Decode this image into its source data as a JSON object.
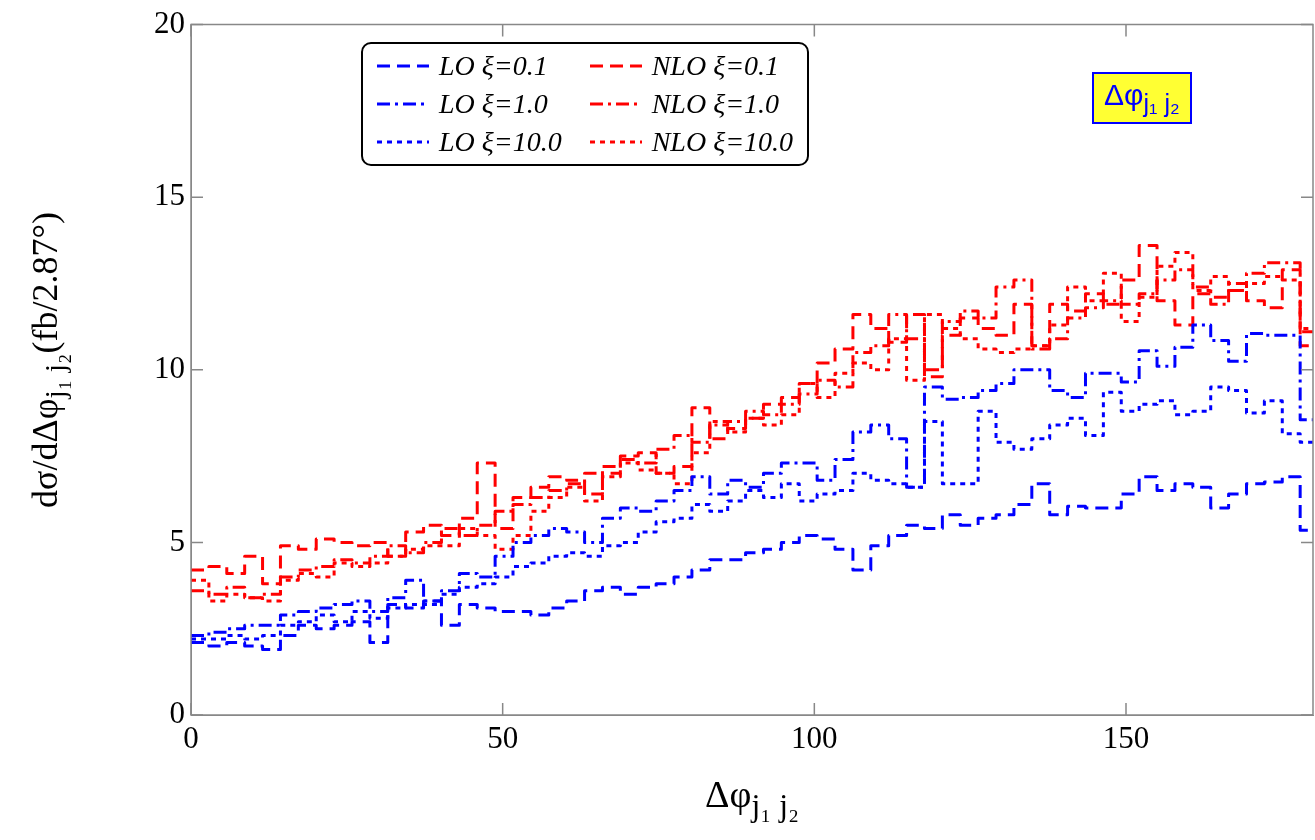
{
  "chart_data": {
    "type": "step",
    "xlabel": "Δφ$_{j₁ j₂}$",
    "ylabel": "dσ/dΔφ$_{j₁ j₂}$(fb/2.87°)",
    "annotations": [
      "Δφ$_{j₁ j₂}$"
    ],
    "x": [
      0,
      2.87,
      5.74,
      8.61,
      11.48,
      14.35,
      17.22,
      20.09,
      22.96,
      25.83,
      28.7,
      31.57,
      34.44,
      37.31,
      40.18,
      43.05,
      45.92,
      48.79,
      51.66,
      54.53,
      57.4,
      60.27,
      63.14,
      66.01,
      68.88,
      71.75,
      74.62,
      77.49,
      80.36,
      83.23,
      86.1,
      88.97,
      91.84,
      94.71,
      97.58,
      100.45,
      103.32,
      106.19,
      109.06,
      111.93,
      114.8,
      117.67,
      120.54,
      123.41,
      126.28,
      129.15,
      132.02,
      134.89,
      137.76,
      140.63,
      143.5,
      146.37,
      149.24,
      152.11,
      154.98,
      157.85,
      160.72,
      163.59,
      166.46,
      169.33,
      172.2,
      175.07,
      177.94,
      180
    ],
    "xlim": [
      0,
      180
    ],
    "xticks": [
      0,
      50,
      100,
      150
    ],
    "ylim": [
      0,
      20
    ],
    "yticks": [
      0,
      5,
      10,
      15,
      20
    ],
    "grid": false,
    "legend": "top",
    "series": [
      {
        "name": "LO ξ=0.1",
        "color": "#0000ff",
        "line_style": "dashed",
        "values": [
          2.1,
          2.0,
          2.1,
          2.0,
          1.9,
          2.3,
          2.6,
          2.5,
          2.6,
          2.7,
          2.1,
          3.2,
          3.1,
          3.3,
          2.6,
          3.2,
          3.1,
          3.0,
          3.0,
          2.9,
          3.1,
          3.3,
          3.6,
          3.7,
          3.5,
          3.7,
          3.8,
          4.0,
          4.2,
          4.5,
          4.5,
          4.7,
          4.8,
          5.0,
          5.2,
          5.1,
          4.8,
          4.2,
          4.9,
          5.2,
          5.5,
          5.4,
          5.8,
          5.5,
          5.7,
          5.8,
          6.1,
          6.7,
          5.8,
          6.05,
          6.0,
          6.0,
          6.4,
          6.9,
          6.5,
          6.7,
          6.6,
          6.0,
          6.4,
          6.7,
          6.75,
          6.9,
          5.35,
          5.35
        ]
      },
      {
        "name": "LO ξ=1.0",
        "color": "#0000ff",
        "line_style": "dashdot",
        "values": [
          2.3,
          2.4,
          2.5,
          2.6,
          2.6,
          2.9,
          3.0,
          3.1,
          3.2,
          3.3,
          3.0,
          3.4,
          3.9,
          3.3,
          3.6,
          4.1,
          4.0,
          4.6,
          5.0,
          5.2,
          5.4,
          5.3,
          5.0,
          5.7,
          6.0,
          5.9,
          6.2,
          6.5,
          6.9,
          6.4,
          6.8,
          6.6,
          7.0,
          7.3,
          7.3,
          6.8,
          7.4,
          8.2,
          8.4,
          8.0,
          6.6,
          9.5,
          9.15,
          9.2,
          9.4,
          9.6,
          10.0,
          10.0,
          9.4,
          9.2,
          9.9,
          9.9,
          9.65,
          10.55,
          10.1,
          10.65,
          11.3,
          10.85,
          10.25,
          11.05,
          11.0,
          11.0,
          8.55,
          8.55
        ]
      },
      {
        "name": "LO ξ=10.0",
        "color": "#0000ff",
        "line_style": "dotted",
        "values": [
          2.2,
          2.2,
          2.3,
          2.2,
          2.3,
          2.6,
          2.7,
          2.9,
          2.7,
          3.0,
          2.8,
          3.1,
          3.2,
          3.2,
          3.5,
          3.7,
          3.8,
          4.0,
          4.3,
          4.4,
          4.6,
          4.7,
          4.6,
          4.9,
          5.0,
          5.3,
          5.6,
          5.7,
          6.1,
          5.9,
          6.2,
          6.5,
          6.3,
          6.7,
          6.2,
          6.4,
          6.5,
          7.0,
          6.8,
          6.7,
          6.6,
          8.5,
          6.7,
          6.7,
          8.8,
          7.9,
          7.7,
          8.0,
          8.4,
          8.6,
          8.1,
          9.35,
          8.8,
          9.0,
          9.1,
          8.7,
          8.8,
          9.5,
          9.4,
          8.75,
          9.1,
          8.15,
          7.9,
          7.9
        ]
      },
      {
        "name": "NLO ξ=0.1",
        "color": "#ff0000",
        "line_style": "dashed",
        "values": [
          4.2,
          4.3,
          4.1,
          4.6,
          3.8,
          4.9,
          4.8,
          5.1,
          5.0,
          4.9,
          5.0,
          4.6,
          5.3,
          5.5,
          5.2,
          5.7,
          7.3,
          5.4,
          6.3,
          6.6,
          6.9,
          6.8,
          6.4,
          7.0,
          7.5,
          7.6,
          7.0,
          7.2,
          8.9,
          8.0,
          8.3,
          8.6,
          9.0,
          9.2,
          9.6,
          10.2,
          10.6,
          11.6,
          11.2,
          10.8,
          11.6,
          9.8,
          11.0,
          11.5,
          11.2,
          11.0,
          11.9,
          10.7,
          11.9,
          11.7,
          12.2,
          11.9,
          12.6,
          13.6,
          12.0,
          11.3,
          12.2,
          12.1,
          12.3,
          12.0,
          11.8,
          12.9,
          10.7,
          10.7
        ]
      },
      {
        "name": "NLO ξ=1.0",
        "color": "#ff0000",
        "line_style": "dashdot",
        "values": [
          3.6,
          3.5,
          3.7,
          3.4,
          3.5,
          4.0,
          4.2,
          4.3,
          4.5,
          4.4,
          4.6,
          4.9,
          4.7,
          5.0,
          5.4,
          5.2,
          5.5,
          5.9,
          6.1,
          6.3,
          6.5,
          6.7,
          7.0,
          7.2,
          7.4,
          7.3,
          7.7,
          8.1,
          7.9,
          8.4,
          8.5,
          8.8,
          8.7,
          9.0,
          9.3,
          9.7,
          9.5,
          10.5,
          10.7,
          11.6,
          10.9,
          10.0,
          11.4,
          11.7,
          11.5,
          12.4,
          12.6,
          10.6,
          10.9,
          11.5,
          11.8,
          12.0,
          11.9,
          12.2,
          12.6,
          12.9,
          12.4,
          11.9,
          12.5,
          12.8,
          13.1,
          13.1,
          11.1,
          11.1
        ]
      },
      {
        "name": "NLO ξ=10.0",
        "color": "#ff0000",
        "line_style": "dotted",
        "values": [
          3.9,
          3.3,
          3.5,
          3.4,
          3.3,
          3.9,
          4.1,
          4.0,
          4.4,
          4.3,
          4.4,
          4.6,
          4.8,
          4.9,
          4.9,
          5.4,
          5.2,
          4.8,
          5.2,
          5.9,
          6.3,
          6.6,
          6.2,
          6.9,
          7.3,
          7.1,
          7.0,
          6.7,
          7.6,
          8.5,
          8.2,
          8.6,
          8.4,
          8.7,
          9.6,
          9.2,
          9.9,
          10.2,
          10.0,
          10.9,
          9.7,
          11.6,
          11.2,
          10.9,
          10.6,
          10.5,
          10.6,
          10.7,
          11.3,
          12.4,
          12.0,
          12.8,
          11.4,
          12.1,
          13.0,
          13.4,
          12.3,
          12.7,
          12.3,
          12.5,
          12.7,
          12.6,
          11.2,
          11.2
        ]
      }
    ]
  }
}
